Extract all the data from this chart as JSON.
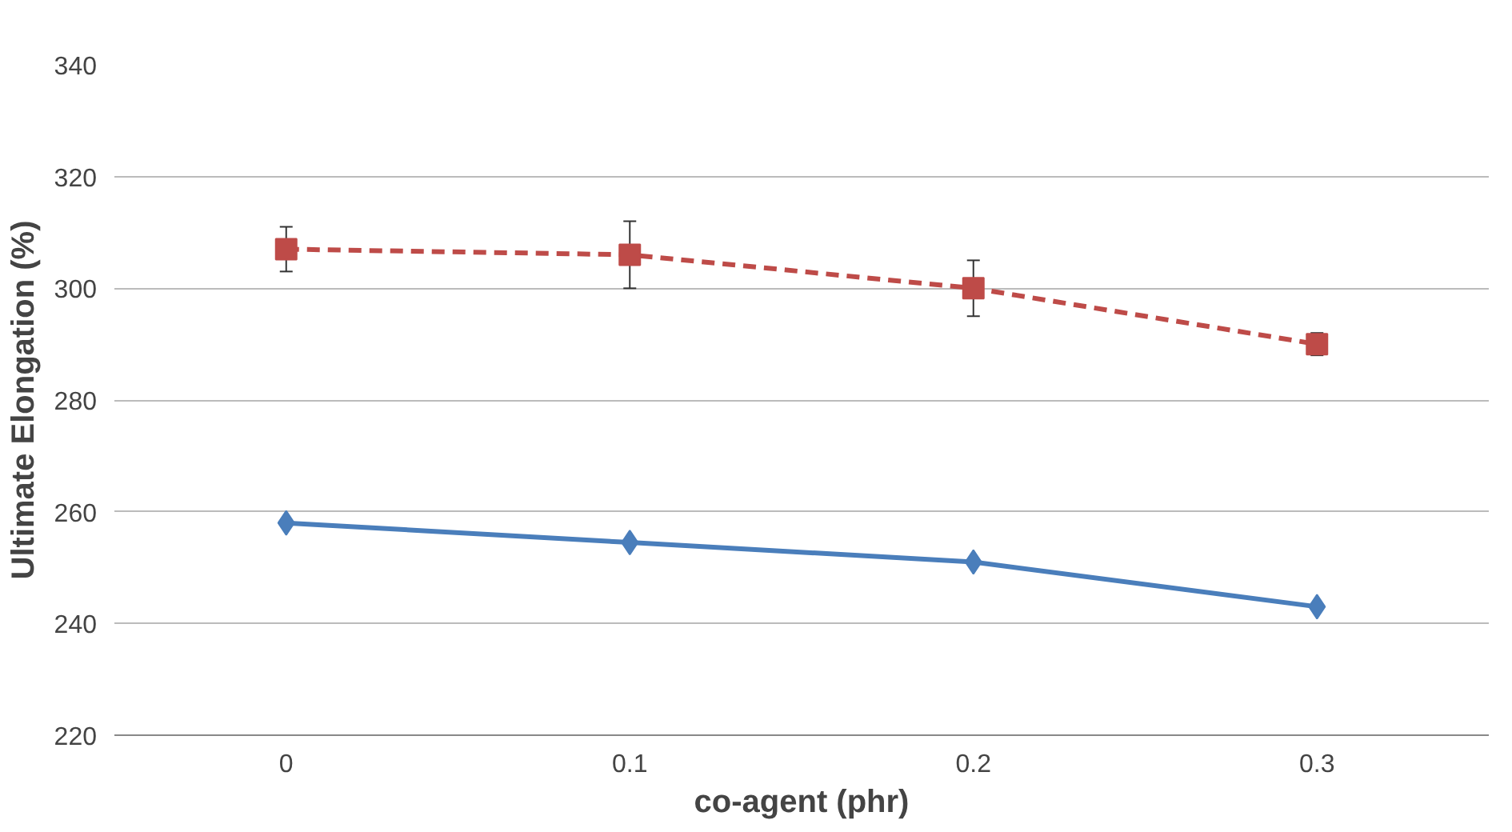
{
  "chart_data": {
    "type": "line",
    "xlabel": "co-agent (phr)",
    "ylabel": "Ultimate Elongation (%)",
    "categories": [
      "0",
      "0.1",
      "0.2",
      "0.3"
    ],
    "ylim": [
      220,
      340
    ],
    "yticks": [
      220,
      240,
      260,
      280,
      300,
      320,
      340
    ],
    "grid": "y",
    "series": [
      {
        "color": "#4a7ebb",
        "values": [
          258,
          254.5,
          251,
          243
        ],
        "marker": "diamond",
        "line_style": "solid"
      },
      {
        "color": "#be4b48",
        "values": [
          307,
          306,
          300,
          290
        ],
        "marker": "square",
        "line_style": "dashed",
        "errors": [
          4,
          6,
          5,
          2
        ]
      }
    ]
  }
}
